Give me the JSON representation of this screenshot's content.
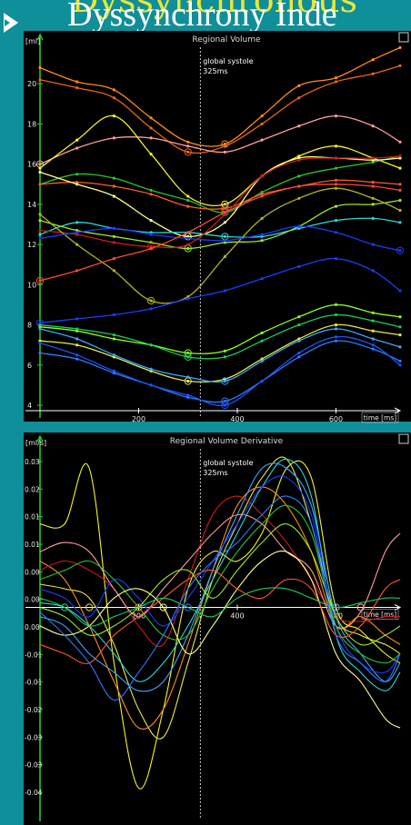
{
  "slide": {
    "title_top": "Dyssynchronous",
    "title_main": "Dyssynchrony Inde"
  },
  "colors": {
    "background": "#0f8f99",
    "panel": "#000000",
    "axis": "#2bd12b",
    "marker": "#ffffff"
  },
  "chart_data": [
    {
      "type": "line",
      "title": "Regional Volume",
      "ylabel": "[ml]",
      "xlabel": "time [ms]",
      "xlim": [
        0,
        730
      ],
      "ylim": [
        4,
        22
      ],
      "x_ticks": [
        "200",
        "400",
        "600"
      ],
      "y_ticks": [
        "4",
        "6",
        "8",
        "10",
        "12",
        "14",
        "16",
        "18",
        "20"
      ],
      "marker": {
        "x": 325,
        "label": "global systole",
        "value": "325ms"
      },
      "x": [
        0,
        75,
        150,
        225,
        300,
        375,
        450,
        525,
        600,
        675,
        730
      ],
      "series": [
        {
          "color": "#ff8c1a",
          "values": [
            20.8,
            20.1,
            19.7,
            18.3,
            17.1,
            17.0,
            18.4,
            19.9,
            20.3,
            21.2,
            21.8
          ]
        },
        {
          "color": "#e8641a",
          "values": [
            20.2,
            19.8,
            19.3,
            17.8,
            16.6,
            16.9,
            18.0,
            19.3,
            20.1,
            20.5,
            20.9
          ]
        },
        {
          "color": "#ff9c9c",
          "values": [
            16.0,
            16.8,
            17.3,
            17.3,
            16.9,
            16.6,
            17.2,
            17.9,
            18.4,
            17.9,
            17.1
          ]
        },
        {
          "color": "#f5f52c",
          "values": [
            15.8,
            17.2,
            18.4,
            16.5,
            14.4,
            14.0,
            15.4,
            16.4,
            16.9,
            16.3,
            15.8
          ]
        },
        {
          "color": "#2cc22c",
          "values": [
            15.0,
            15.5,
            15.3,
            14.7,
            14.2,
            13.6,
            14.6,
            15.4,
            15.8,
            16.1,
            16.4
          ]
        },
        {
          "color": "#ff5a2c",
          "values": [
            15.0,
            15.1,
            14.9,
            14.5,
            13.9,
            13.8,
            14.5,
            14.9,
            15.2,
            15.1,
            15.0
          ]
        },
        {
          "color": "#ffff8c",
          "values": [
            15.6,
            15.0,
            14.4,
            13.2,
            12.4,
            13.1,
            15.4,
            16.3,
            16.3,
            16.2,
            16.3
          ]
        },
        {
          "color": "#2cd6d6",
          "values": [
            12.5,
            13.1,
            12.8,
            12.6,
            12.6,
            12.4,
            12.4,
            12.8,
            13.2,
            13.3,
            13.1
          ]
        },
        {
          "color": "#9ce82c",
          "values": [
            13.2,
            12.7,
            12.4,
            12.1,
            11.8,
            12.1,
            12.2,
            12.9,
            13.9,
            14.0,
            14.2
          ]
        },
        {
          "color": "#cc1c1c",
          "values": [
            12.7,
            12.5,
            12.1,
            11.9,
            12.0,
            13.5,
            15.4,
            16.2,
            16.3,
            16.3,
            16.4
          ]
        },
        {
          "color": "#b4b424",
          "values": [
            13.5,
            12.0,
            10.7,
            9.2,
            9.4,
            11.4,
            13.3,
            14.3,
            14.8,
            14.3,
            13.7
          ]
        },
        {
          "color": "#1c3cff",
          "values": [
            12.3,
            12.6,
            12.8,
            12.5,
            12.3,
            12.2,
            12.5,
            12.9,
            12.6,
            12.0,
            11.7
          ]
        },
        {
          "color": "#ff4a36",
          "values": [
            10.2,
            10.7,
            11.3,
            11.8,
            12.6,
            13.6,
            14.4,
            14.9,
            15.0,
            14.9,
            14.7
          ]
        },
        {
          "color": "#1c3cff",
          "values": [
            8.1,
            8.3,
            8.5,
            8.8,
            9.3,
            9.7,
            10.3,
            10.9,
            11.3,
            10.7,
            9.7
          ]
        },
        {
          "color": "#8cff1c",
          "values": [
            7.9,
            7.7,
            7.3,
            7.0,
            6.6,
            6.7,
            7.6,
            8.4,
            9.0,
            8.6,
            8.4
          ]
        },
        {
          "color": "#1ccc5a",
          "values": [
            8.0,
            7.8,
            7.5,
            7.0,
            6.4,
            6.4,
            7.2,
            8.0,
            8.5,
            8.2,
            7.9
          ]
        },
        {
          "color": "#e8e84a",
          "values": [
            7.2,
            7.0,
            6.4,
            5.7,
            5.2,
            5.3,
            6.3,
            7.3,
            8.0,
            7.7,
            7.5
          ]
        },
        {
          "color": "#38a8ff",
          "values": [
            7.8,
            7.3,
            6.5,
            5.8,
            5.4,
            5.2,
            6.2,
            7.2,
            7.8,
            7.3,
            6.9
          ]
        },
        {
          "color": "#2c7cff",
          "values": [
            6.6,
            6.3,
            5.6,
            5.0,
            4.4,
            4.2,
            5.2,
            6.4,
            7.2,
            6.8,
            6.2
          ]
        },
        {
          "color": "#1c54ff",
          "values": [
            7.1,
            6.5,
            5.7,
            5.0,
            4.5,
            4.0,
            5.2,
            6.6,
            7.4,
            7.0,
            6.0
          ]
        }
      ]
    },
    {
      "type": "line",
      "title": "Regional Volume Derivative",
      "ylabel": "[ml/s]",
      "xlabel": "time [ms]",
      "xlim": [
        0,
        730
      ],
      "ylim": [
        -0.045,
        0.035
      ],
      "x_ticks": [
        "200",
        "400",
        "600"
      ],
      "y_ticks": [
        "0.03",
        "0.02",
        "0.01",
        "0.01",
        "0.00",
        "0.00",
        "0.00",
        "-0.01",
        "-0.01",
        "-0.02",
        "-0.03",
        "-0.03",
        "-0.04"
      ],
      "marker": {
        "x": 325,
        "label": "global systole",
        "value": "325ms"
      },
      "x": [
        0,
        50,
        100,
        150,
        200,
        250,
        300,
        350,
        400,
        450,
        500,
        550,
        600,
        650,
        700,
        730
      ],
      "series": [
        {
          "color": "#f5f52c",
          "values": [
            0.018,
            0.018,
            0.03,
            -0.012,
            -0.039,
            -0.022,
            0.004,
            0.012,
            0.01,
            0.016,
            0.03,
            0.028,
            0.0,
            -0.005,
            -0.01,
            -0.012
          ]
        },
        {
          "color": "#e8e84a",
          "values": [
            0.005,
            0.004,
            0.002,
            -0.008,
            -0.022,
            -0.028,
            -0.012,
            0.006,
            0.018,
            0.028,
            0.032,
            0.018,
            -0.002,
            -0.006,
            -0.008,
            -0.01
          ]
        },
        {
          "color": "#ff8c1a",
          "values": [
            0.01,
            0.006,
            -0.004,
            -0.016,
            -0.026,
            -0.022,
            -0.008,
            0.008,
            0.022,
            0.026,
            0.022,
            0.012,
            -0.004,
            -0.002,
            -0.006,
            -0.008
          ]
        },
        {
          "color": "#cc1c1c",
          "values": [
            0.008,
            0.01,
            0.008,
            0.004,
            -0.004,
            -0.008,
            0.006,
            0.02,
            0.024,
            0.02,
            0.014,
            0.006,
            -0.002,
            -0.003,
            -0.002,
            -0.002
          ]
        },
        {
          "color": "#ff9c9c",
          "values": [
            0.012,
            0.014,
            0.012,
            0.004,
            -0.002,
            0.004,
            0.01,
            0.016,
            0.02,
            0.018,
            0.012,
            0.008,
            -0.004,
            -0.001,
            0.012,
            0.016
          ]
        },
        {
          "color": "#2cd6d6",
          "values": [
            0.001,
            0.0,
            -0.004,
            -0.01,
            -0.016,
            -0.012,
            -0.004,
            0.006,
            0.016,
            0.026,
            0.032,
            0.024,
            -0.006,
            -0.014,
            -0.018,
            -0.014
          ]
        },
        {
          "color": "#38a8ff",
          "values": [
            -0.002,
            -0.004,
            -0.01,
            -0.014,
            -0.018,
            -0.016,
            -0.006,
            0.008,
            0.02,
            0.03,
            0.03,
            0.022,
            -0.002,
            -0.01,
            -0.016,
            -0.012
          ]
        },
        {
          "color": "#1c3cff",
          "values": [
            0.004,
            0.002,
            -0.002,
            0.006,
            0.002,
            -0.004,
            0.002,
            0.01,
            0.018,
            0.026,
            0.028,
            0.02,
            -0.004,
            -0.012,
            -0.014,
            -0.01
          ]
        },
        {
          "color": "#2cc22c",
          "values": [
            0.006,
            0.008,
            0.01,
            0.006,
            0.0,
            -0.006,
            -0.006,
            0.004,
            0.012,
            0.018,
            0.022,
            0.016,
            -0.004,
            -0.01,
            -0.012,
            -0.01
          ]
        },
        {
          "color": "#9ce82c",
          "values": [
            0.0,
            -0.002,
            -0.006,
            -0.004,
            0.0,
            0.006,
            0.008,
            0.002,
            0.008,
            0.014,
            0.018,
            0.012,
            -0.002,
            -0.008,
            -0.006,
            -0.004
          ]
        },
        {
          "color": "#ffff8c",
          "values": [
            -0.004,
            -0.006,
            -0.004,
            0.002,
            0.004,
            0.0,
            -0.01,
            -0.004,
            0.004,
            0.01,
            0.012,
            0.006,
            -0.01,
            -0.016,
            -0.024,
            -0.026
          ]
        },
        {
          "color": "#ff5a2c",
          "values": [
            -0.008,
            -0.01,
            -0.012,
            -0.006,
            -0.002,
            0.002,
            0.006,
            0.008,
            0.004,
            0.002,
            0.006,
            0.004,
            -0.006,
            -0.004,
            0.004,
            0.006
          ]
        },
        {
          "color": "#1ccc5a",
          "values": [
            0.002,
            0.0,
            -0.004,
            -0.002,
            0.0,
            0.002,
            0.0,
            -0.002,
            0.002,
            0.004,
            0.004,
            0.002,
            0.0,
            0.001,
            0.002,
            0.002
          ]
        },
        {
          "color": "#2c7cff",
          "values": [
            -0.001,
            -0.006,
            -0.012,
            -0.02,
            -0.014,
            -0.006,
            0.004,
            0.01,
            0.014,
            0.02,
            0.024,
            0.018,
            -0.006,
            -0.012,
            -0.016,
            -0.01
          ]
        }
      ]
    }
  ]
}
